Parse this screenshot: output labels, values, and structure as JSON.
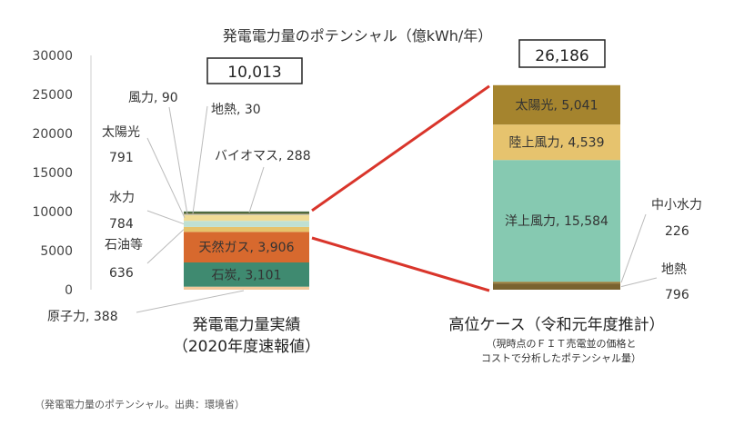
{
  "chart_data": {
    "type": "bar",
    "title": "発電電力量のポテンシャル（億kWh/年）",
    "ylim": [
      0,
      30000
    ],
    "yticks": [
      0,
      5000,
      10000,
      15000,
      20000,
      25000,
      30000
    ],
    "ytick_labels": [
      "0",
      "5000",
      "10000",
      "15000",
      "20000",
      "25000",
      "30000"
    ],
    "bars": [
      {
        "label": "発電電力量実績",
        "sublabel": "（2020年度速報値）",
        "total": "10,013",
        "segments": [
          {
            "name": "原子力",
            "value": 388,
            "color": "#f2c89a",
            "text": "原子力, 388"
          },
          {
            "name": "石炭",
            "value": 3101,
            "color": "#3f8a70",
            "text": "石炭, 3,101"
          },
          {
            "name": "天然ガス",
            "value": 3906,
            "color": "#d7692e",
            "text": "天然ガス, 3,906"
          },
          {
            "name": "石油等",
            "value": 636,
            "color": "#e6c26a",
            "text_top": "石油等",
            "text_bottom": "636"
          },
          {
            "name": "水力",
            "value": 784,
            "color": "#bfe0d2",
            "text_top": "水力",
            "text_bottom": "784"
          },
          {
            "name": "太陽光",
            "value": 791,
            "color": "#f0dc96",
            "text_top": "太陽光",
            "text_bottom": "791"
          },
          {
            "name": "風力",
            "value": 90,
            "color": "#8fa8c8",
            "text": "風力, 90"
          },
          {
            "name": "地熱",
            "value": 30,
            "color": "#b08c5a",
            "text": "地熱, 30"
          },
          {
            "name": "バイオマス",
            "value": 288,
            "color": "#4d6a3f",
            "text": "バイオマス, 288"
          }
        ]
      },
      {
        "label": "高位ケース（令和元年度推計）",
        "sublabel_lines": [
          "（現時点のＦＩＴ売電並の価格と",
          "コストで分析したポテンシャル量）"
        ],
        "total": "26,186",
        "segments": [
          {
            "name": "地熱",
            "value": 796,
            "color": "#7a6330",
            "text_top": "地熱",
            "text_bottom": "796"
          },
          {
            "name": "中小水力",
            "value": 226,
            "color": "#9b7e3b",
            "text_top": "中小水力",
            "text_bottom": "226"
          },
          {
            "name": "洋上風力",
            "value": 15584,
            "color": "#86c9b1",
            "text": "洋上風力, 15,584"
          },
          {
            "name": "陸上風力",
            "value": 4539,
            "color": "#e6c36e",
            "text": "陸上風力, 4,539"
          },
          {
            "name": "太陽光",
            "value": 5041,
            "color": "#a5842e",
            "text": "太陽光, 5,041"
          }
        ]
      }
    ]
  },
  "caption": "（発電電力量のポテンシャル。出典：環境省）"
}
